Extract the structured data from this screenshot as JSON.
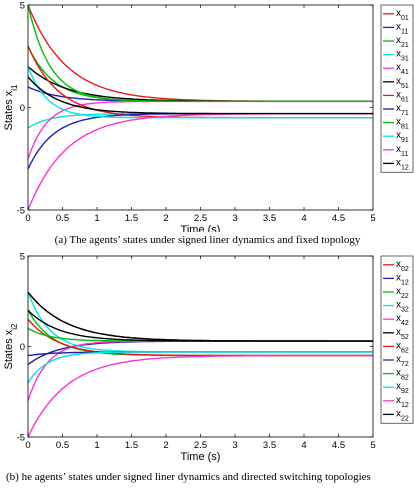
{
  "captions": {
    "a": "(a) The agents’ states under signed liner dynamics and fixed topology",
    "b": "(b) he agents’ states under signed liner dynamics and directed switching topologies"
  },
  "chart_data": [
    {
      "type": "line",
      "xlabel": "Time (s)",
      "ylabel_main": "States x",
      "ylabel_sub": "i1",
      "xlim": [
        0,
        5
      ],
      "ylim": [
        -5,
        5
      ],
      "xticks": [
        "0",
        "0.5",
        "1",
        "1.5",
        "2",
        "2.5",
        "3",
        "3.5",
        "4",
        "4.5",
        "5"
      ],
      "yticks": [
        "-5",
        "0",
        "5"
      ],
      "grid": false,
      "legend_position": "right",
      "series": [
        {
          "name": "01",
          "color": "#e41a1c",
          "x0": 5.0,
          "x_final": 0.3
        },
        {
          "name": "11",
          "color": "#1f1fb4",
          "x0": 1.0,
          "x_final": 0.3
        },
        {
          "name": "21",
          "color": "#00c000",
          "x0": 3.0,
          "x_final": 0.3
        },
        {
          "name": "31",
          "color": "#00e5e5",
          "x0": -1.0,
          "x_final": -0.3
        },
        {
          "name": "41",
          "color": "#ff33cc",
          "x0": -2.5,
          "x_final": 0.3
        },
        {
          "name": "51",
          "color": "#000000",
          "x0": 2.0,
          "x_final": 0.3
        },
        {
          "name": "61",
          "color": "#e41a1c",
          "x0": 3.0,
          "x_final": -0.5
        },
        {
          "name": "71",
          "color": "#1f1fb4",
          "x0": -3.0,
          "x_final": -0.3
        },
        {
          "name": "81",
          "color": "#00c000",
          "x0": 5.0,
          "x_final": 0.3
        },
        {
          "name": "91",
          "color": "#00e5e5",
          "x0": 2.0,
          "x_final": -0.5
        },
        {
          "name": "11",
          "color": "#ff33cc",
          "x0": -5.0,
          "x_final": -0.3
        },
        {
          "name": "12",
          "color": "#000000",
          "x0": 1.5,
          "x_final": -0.3
        }
      ]
    },
    {
      "type": "line",
      "xlabel": "Time (s)",
      "ylabel_main": "States x",
      "ylabel_sub": "i2",
      "xlim": [
        0,
        5
      ],
      "ylim": [
        -5,
        5
      ],
      "xticks": [
        "0",
        "0.5",
        "1",
        "1.5",
        "2",
        "2.5",
        "3",
        "3.5",
        "4",
        "4.5",
        "5"
      ],
      "yticks": [
        "-5",
        "0",
        "5"
      ],
      "grid": false,
      "legend_position": "right",
      "series": [
        {
          "name": "02",
          "color": "#e41a1c",
          "x0": 3.0,
          "x_final": 0.3
        },
        {
          "name": "12",
          "color": "#1f1fb4",
          "x0": -1.0,
          "x_final": 0.3
        },
        {
          "name": "22",
          "color": "#00c000",
          "x0": 2.0,
          "x_final": -0.5
        },
        {
          "name": "32",
          "color": "#00e5e5",
          "x0": 3.0,
          "x_final": -0.3
        },
        {
          "name": "42",
          "color": "#ff33cc",
          "x0": -3.0,
          "x_final": 0.3
        },
        {
          "name": "52",
          "color": "#000000",
          "x0": 3.0,
          "x_final": 0.3
        },
        {
          "name": "62",
          "color": "#e41a1c",
          "x0": 1.5,
          "x_final": -0.5
        },
        {
          "name": "72",
          "color": "#1f1fb4",
          "x0": -0.5,
          "x_final": -0.3
        },
        {
          "name": "82",
          "color": "#00c000",
          "x0": 1.0,
          "x_final": 0.3
        },
        {
          "name": "92",
          "color": "#00e5e5",
          "x0": -2.0,
          "x_final": -0.3
        },
        {
          "name": "12",
          "color": "#ff33cc",
          "x0": -5.0,
          "x_final": -0.5
        },
        {
          "name": "22",
          "color": "#000000",
          "x0": 2.0,
          "x_final": 0.3
        }
      ]
    }
  ]
}
